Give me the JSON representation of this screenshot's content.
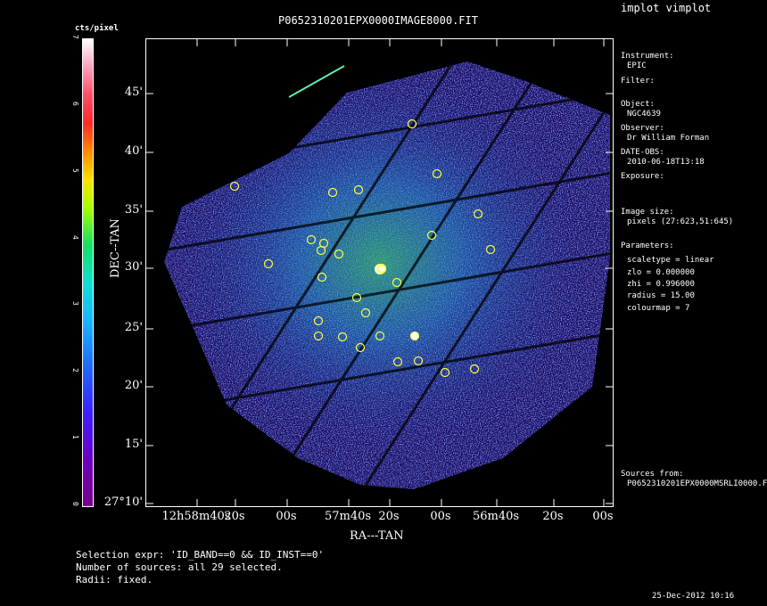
{
  "window": {
    "app_title": "implot vimplot"
  },
  "plot": {
    "title": "P0652310201EPX0000IMAGE8000.FIT",
    "colorbar_label": "cts/pixel",
    "colorbar_ticks": [
      "0",
      "1",
      "2",
      "3",
      "4",
      "5",
      "6",
      "7"
    ],
    "ylabel": "DEC--TAN",
    "xlabel": "RA---TAN",
    "y_ticks": [
      "45'",
      "40'",
      "35'",
      "30'",
      "25'",
      "20'",
      "15'",
      "27°10'"
    ],
    "x_ticks": [
      "12h58m40s",
      "20s",
      "00s",
      "57m40s",
      "20s",
      "00s",
      "56m40s",
      "20s",
      "00s"
    ]
  },
  "info": {
    "instrument_label": "Instrument:",
    "instrument": "EPIC",
    "filter_label": "Filter:",
    "object_label": "Object:",
    "object": "NGC4639",
    "observer_label": "Observer:",
    "observer": "Dr William Forman",
    "date_label": "DATE-OBS:",
    "date": "2010-06-18T13:18",
    "exposure_label": "Exposure:",
    "image_size_label": "Image size:",
    "image_size": "pixels (27:623,51:645)",
    "parameters_label": "Parameters:",
    "params": [
      "scaletype = linear",
      "zlo = 0.000000",
      "zhi = 0.996000",
      "radius =   15.00",
      "colourmap =    7"
    ],
    "sources_label": "Sources from:",
    "sources_file": "P0652310201EPX0000MSRLI0000.F"
  },
  "footer": {
    "selection_expr": "Selection expr: 'ID_BAND==0 && ID_INST==0'",
    "num_sources": "Number of sources: all 29 selected.",
    "radii": "Radii: fixed.",
    "timestamp": "25-Dec-2012 10:16"
  },
  "colors": {
    "background": "#000000",
    "foreground": "#ffffff",
    "source_marker": "#ffff40"
  }
}
